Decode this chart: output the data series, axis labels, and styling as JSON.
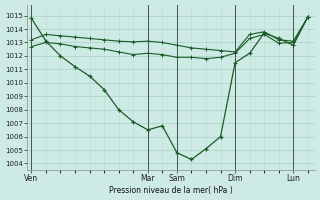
{
  "bg_color": "#ceeae4",
  "grid_color_major": "#aacfc8",
  "grid_color_minor": "#bdddd7",
  "line_color": "#1a5c28",
  "ylim": [
    1003.5,
    1015.8
  ],
  "yticks": [
    1004,
    1005,
    1006,
    1007,
    1008,
    1009,
    1010,
    1011,
    1012,
    1013,
    1014,
    1015
  ],
  "xlabel": "Pression niveau de la mer( hPa )",
  "xtick_labels": [
    "Ven",
    "Mar",
    "Sam",
    "Dim",
    "Lun"
  ],
  "xtick_positions": [
    0,
    8,
    10,
    14,
    18
  ],
  "vline_positions": [
    0,
    8,
    10,
    14,
    18
  ],
  "xlim": [
    -0.3,
    19.5
  ],
  "line1_x": [
    0,
    1,
    2,
    3,
    4,
    5,
    6,
    7,
    8,
    9,
    10,
    11,
    12,
    13,
    14,
    15,
    16,
    17,
    18,
    19
  ],
  "line1_y": [
    1014.8,
    1013.1,
    1012.0,
    1011.2,
    1010.5,
    1009.5,
    1008.0,
    1007.1,
    1006.5,
    1006.8,
    1004.8,
    1004.3,
    1005.1,
    1006.0,
    1011.5,
    1012.2,
    1013.7,
    1013.3,
    1012.8,
    1014.9
  ],
  "line2_x": [
    0,
    1,
    2,
    3,
    4,
    5,
    6,
    7,
    8,
    9,
    10,
    11,
    12,
    13,
    14,
    15,
    16,
    17,
    18,
    19
  ],
  "line2_y": [
    1013.2,
    1013.6,
    1013.5,
    1013.4,
    1013.3,
    1013.2,
    1013.1,
    1013.05,
    1013.1,
    1013.0,
    1012.8,
    1012.6,
    1012.5,
    1012.4,
    1012.3,
    1013.6,
    1013.8,
    1013.2,
    1013.1,
    1014.9
  ],
  "line3_x": [
    0,
    1,
    2,
    3,
    4,
    5,
    6,
    7,
    8,
    9,
    10,
    11,
    12,
    13,
    14,
    15,
    16,
    17,
    18,
    19
  ],
  "line3_y": [
    1012.7,
    1013.0,
    1012.9,
    1012.7,
    1012.6,
    1012.5,
    1012.3,
    1012.1,
    1012.2,
    1012.1,
    1011.9,
    1011.9,
    1011.8,
    1011.9,
    1012.2,
    1013.3,
    1013.6,
    1012.95,
    1013.0,
    1014.9
  ]
}
